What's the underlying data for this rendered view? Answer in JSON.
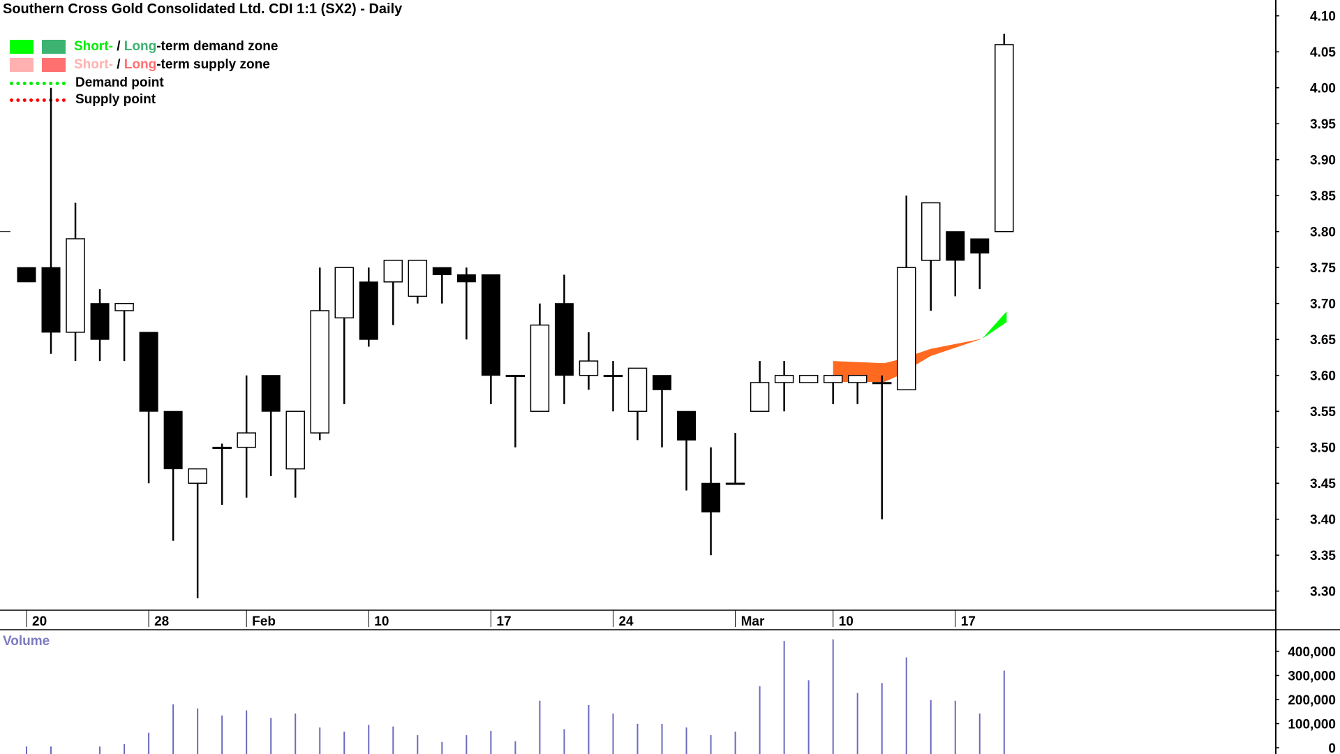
{
  "chart_data": {
    "type": "candlestick",
    "title": "Southern Cross Gold Consolidated Ltd. CDI 1:1 (SX2) - Daily",
    "legend": [
      {
        "parts": [
          {
            "text": "Short-",
            "color": "#00ee00"
          },
          {
            "text": " / ",
            "color": "#000000"
          },
          {
            "text": "Long",
            "color": "#3cb371"
          },
          {
            "text": "-term demand zone",
            "color": "#000000"
          }
        ],
        "swatches": [
          "#00ff00",
          "#3cb371"
        ]
      },
      {
        "parts": [
          {
            "text": "Short-",
            "color": "#ffb0b0"
          },
          {
            "text": " / ",
            "color": "#000000"
          },
          {
            "text": "Long",
            "color": "#ff7070"
          },
          {
            "text": "-term supply zone",
            "color": "#000000"
          }
        ],
        "swatches": [
          "#ffb0b0",
          "#ff7070"
        ]
      },
      {
        "text": "Demand point",
        "dash_color": "#00ee00"
      },
      {
        "text": "Supply point",
        "dash_color": "#ff0000"
      }
    ],
    "legend_placement": "top-left",
    "price_axis": {
      "ylim": [
        3.27,
        4.11
      ],
      "ticks": [
        "3.30",
        "3.35",
        "3.40",
        "3.45",
        "3.50",
        "3.55",
        "3.60",
        "3.65",
        "3.70",
        "3.75",
        "3.80",
        "3.85",
        "3.90",
        "3.95",
        "4.00",
        "4.05",
        "4.10"
      ],
      "position": "right"
    },
    "x_ticks": [
      {
        "index": 0,
        "label": "20"
      },
      {
        "index": 5,
        "label": "28"
      },
      {
        "index": 9,
        "label": "Feb"
      },
      {
        "index": 14,
        "label": "10"
      },
      {
        "index": 19,
        "label": "17"
      },
      {
        "index": 24,
        "label": "24"
      },
      {
        "index": 29,
        "label": "Mar"
      },
      {
        "index": 33,
        "label": "10"
      },
      {
        "index": 38,
        "label": "17"
      }
    ],
    "candles": [
      [
        3.75,
        3.75,
        3.73,
        3.73
      ],
      [
        3.75,
        4.0,
        3.63,
        3.66
      ],
      [
        3.66,
        3.84,
        3.62,
        3.79
      ],
      [
        3.7,
        3.72,
        3.62,
        3.65
      ],
      [
        3.69,
        3.7,
        3.62,
        3.7
      ],
      [
        3.66,
        3.66,
        3.45,
        3.55
      ],
      [
        3.55,
        3.55,
        3.37,
        3.47
      ],
      [
        3.45,
        3.47,
        3.29,
        3.47
      ],
      [
        3.5,
        3.505,
        3.42,
        3.5
      ],
      [
        3.5,
        3.6,
        3.43,
        3.52
      ],
      [
        3.6,
        3.6,
        3.46,
        3.55
      ],
      [
        3.47,
        3.55,
        3.43,
        3.55
      ],
      [
        3.52,
        3.75,
        3.51,
        3.69
      ],
      [
        3.68,
        3.75,
        3.56,
        3.75
      ],
      [
        3.73,
        3.75,
        3.64,
        3.65
      ],
      [
        3.73,
        3.76,
        3.67,
        3.76
      ],
      [
        3.71,
        3.76,
        3.7,
        3.76
      ],
      [
        3.75,
        3.75,
        3.7,
        3.74
      ],
      [
        3.74,
        3.75,
        3.65,
        3.73
      ],
      [
        3.74,
        3.74,
        3.56,
        3.6
      ],
      [
        3.6,
        3.6,
        3.5,
        3.6
      ],
      [
        3.55,
        3.7,
        3.55,
        3.67
      ],
      [
        3.7,
        3.74,
        3.56,
        3.6
      ],
      [
        3.6,
        3.66,
        3.58,
        3.62
      ],
      [
        3.6,
        3.62,
        3.55,
        3.6
      ],
      [
        3.55,
        3.61,
        3.51,
        3.61
      ],
      [
        3.6,
        3.6,
        3.5,
        3.58
      ],
      [
        3.55,
        3.55,
        3.44,
        3.51
      ],
      [
        3.45,
        3.5,
        3.35,
        3.41
      ],
      [
        3.45,
        3.52,
        3.45,
        3.45
      ],
      [
        3.55,
        3.62,
        3.55,
        3.59
      ],
      [
        3.59,
        3.62,
        3.55,
        3.6
      ],
      [
        3.59,
        3.6,
        3.59,
        3.6
      ],
      [
        3.59,
        3.6,
        3.56,
        3.6
      ],
      [
        3.59,
        3.6,
        3.56,
        3.6
      ],
      [
        3.59,
        3.6,
        3.4,
        3.59
      ],
      [
        3.58,
        3.85,
        3.58,
        3.75
      ],
      [
        3.76,
        3.84,
        3.69,
        3.84
      ],
      [
        3.8,
        3.8,
        3.71,
        3.76
      ],
      [
        3.79,
        3.79,
        3.72,
        3.77
      ],
      [
        3.8,
        4.075,
        3.8,
        4.06
      ]
    ],
    "candle_fields": [
      "open",
      "high",
      "low",
      "close"
    ],
    "reference_line": 3.8,
    "zones": [
      {
        "kind": "supply",
        "color": "#ff6a20",
        "upper": [
          [
            33.0,
            3.62
          ],
          [
            35.1,
            3.617
          ],
          [
            35.7,
            3.622
          ],
          [
            36.4,
            3.63
          ],
          [
            37.0,
            3.637
          ],
          [
            39.1,
            3.651
          ]
        ],
        "lower": [
          [
            33.0,
            3.591
          ],
          [
            35.1,
            3.591
          ],
          [
            35.7,
            3.6
          ],
          [
            36.4,
            3.615
          ],
          [
            37.0,
            3.627
          ],
          [
            39.1,
            3.651
          ]
        ]
      },
      {
        "kind": "demand",
        "color": "#00ff00",
        "upper": [
          [
            39.1,
            3.651
          ],
          [
            40.1,
            3.689
          ]
        ],
        "lower": [
          [
            39.1,
            3.651
          ],
          [
            40.1,
            3.674
          ]
        ]
      }
    ],
    "volume": {
      "label": "Volume",
      "ticks": [
        "0",
        "100,000",
        "200,000",
        "300,000",
        "400,000"
      ],
      "color": "#6a6ac0",
      "values": [
        5000,
        5000,
        0,
        5000,
        15000,
        62000,
        180000,
        163000,
        134000,
        155000,
        124000,
        142000,
        84000,
        67000,
        95000,
        88000,
        52000,
        24000,
        52000,
        70000,
        27000,
        195000,
        77000,
        177000,
        142000,
        99000,
        99000,
        84000,
        52000,
        67000,
        255000,
        443000,
        280000,
        450000,
        227000,
        269000,
        375000,
        198000,
        195000,
        142000,
        320000
      ]
    },
    "colors": {
      "up_body": "#ffffff",
      "down_body": "#000000",
      "wick": "#000000",
      "axis": "#000000"
    }
  }
}
